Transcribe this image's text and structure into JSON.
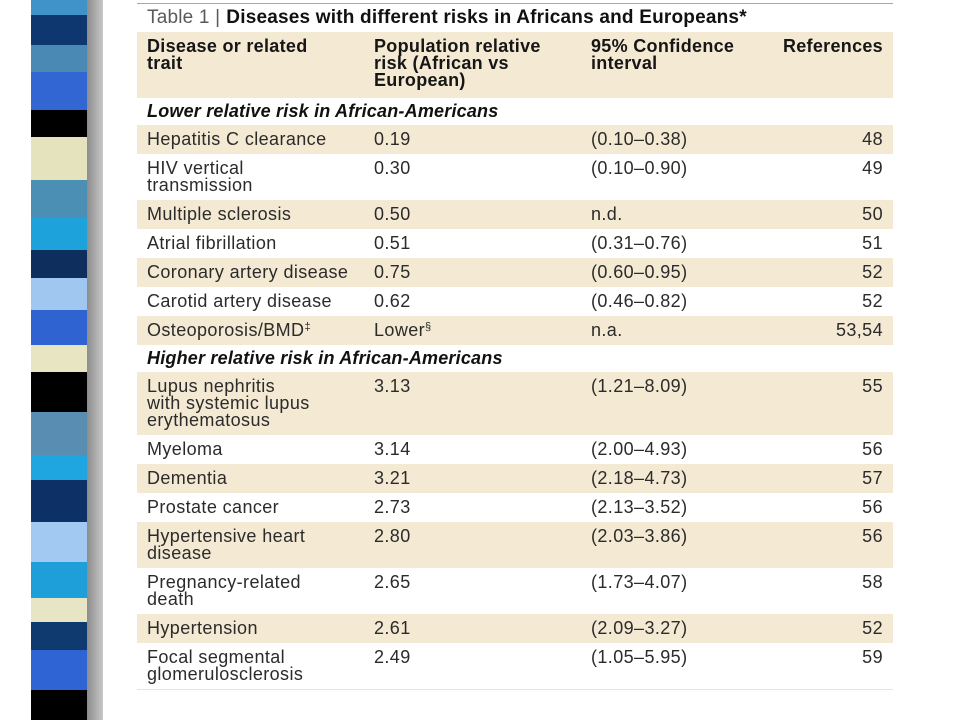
{
  "table": {
    "label": "Table 1 |",
    "title": "Diseases with different risks in Africans and Europeans*",
    "columns": {
      "trait": "Disease or related\ntrait",
      "risk": "Population relative\nrisk (African vs\nEuropean)",
      "ci": "95% Confidence\ninterval",
      "refs": "References"
    },
    "rows": [
      {
        "section": "Lower relative risk in African-Americans"
      },
      {
        "trait": "Hepatitis C clearance",
        "risk": "0.19",
        "ci": "(0.10–0.38)",
        "refs": "48"
      },
      {
        "trait": "HIV vertical\ntransmission",
        "risk": "0.30",
        "ci": "(0.10–0.90)",
        "refs": "49"
      },
      {
        "trait": "Multiple sclerosis",
        "risk": "0.50",
        "ci": "n.d.",
        "refs": "50"
      },
      {
        "trait": "Atrial fibrillation",
        "risk": "0.51",
        "ci": "(0.31–0.76)",
        "refs": "51"
      },
      {
        "trait": "Coronary artery disease",
        "risk": "0.75",
        "ci": "(0.60–0.95)",
        "refs": "52"
      },
      {
        "trait": "Carotid artery disease",
        "risk": "0.62",
        "ci": "(0.46–0.82)",
        "refs": "52"
      },
      {
        "trait": "Osteoporosis/BMD",
        "trait_sup": "‡",
        "risk": "Lower",
        "risk_sup": "§",
        "ci": "n.a.",
        "refs": "53,54"
      },
      {
        "section": "Higher relative risk in African-Americans"
      },
      {
        "trait": "Lupus nephritis\nwith systemic lupus\nerythematosus",
        "risk": "3.13",
        "ci": "(1.21–8.09)",
        "refs": "55"
      },
      {
        "trait": "Myeloma",
        "risk": "3.14",
        "ci": "(2.00–4.93)",
        "refs": "56"
      },
      {
        "trait": "Dementia",
        "risk": "3.21",
        "ci": "(2.18–4.73)",
        "refs": "57"
      },
      {
        "trait": "Prostate cancer",
        "risk": "2.73",
        "ci": "(2.13–3.52)",
        "refs": "56"
      },
      {
        "trait": "Hypertensive heart\ndisease",
        "risk": "2.80",
        "ci": "(2.03–3.86)",
        "refs": "56"
      },
      {
        "trait": "Pregnancy-related\ndeath",
        "risk": "2.65",
        "ci": "(1.73–4.07)",
        "refs": "58"
      },
      {
        "trait": "Hypertension",
        "risk": "2.61",
        "ci": "(2.09–3.27)",
        "refs": "52"
      },
      {
        "trait": "Focal segmental\nglomerulosclerosis",
        "risk": "2.49",
        "ci": "(1.05–5.95)",
        "refs": "59"
      }
    ]
  },
  "theme": {
    "shade": "#f4e9d3",
    "text": "#2b2b2b",
    "label_grey": "#5a5a5a"
  },
  "decoration": {
    "strip_colors": [
      "#3f93c9",
      "#0d376e",
      "#4a89b4",
      "#3166d3",
      "#000000",
      "#e5e3be",
      "#4b8fb5",
      "#1ea2dc",
      "#0e2e5e",
      "#9fc7ef",
      "#2f63d2",
      "#e7e5c2",
      "#000000",
      "#5a8db2",
      "#1fa6e0",
      "#0d3066",
      "#a1c9f1",
      "#1e9fd9",
      "#e7e5c3",
      "#0f3a6f",
      "#2e64d4",
      "#000000"
    ]
  }
}
